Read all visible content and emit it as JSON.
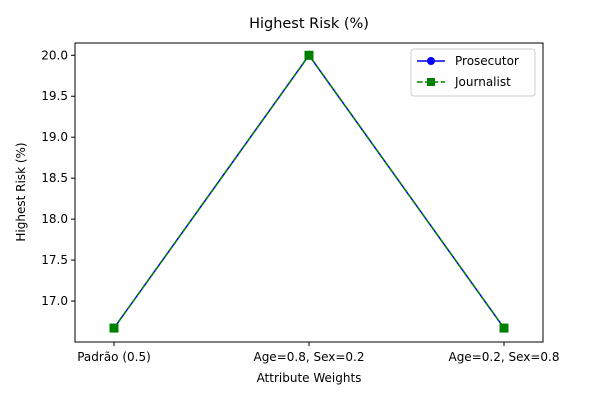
{
  "chart_data": {
    "type": "line",
    "title": "Highest Risk (%)",
    "xlabel": "Attribute Weights",
    "ylabel": "Highest Risk (%)",
    "categories": [
      "Padrão (0.5)",
      "Age=0.8, Sex=0.2",
      "Age=0.2, Sex=0.8"
    ],
    "ylim": [
      16.5,
      20.15
    ],
    "yticks": [
      17.0,
      17.5,
      18.0,
      18.5,
      19.0,
      19.5,
      20.0
    ],
    "ytick_labels": [
      "17.0",
      "17.5",
      "18.0",
      "18.5",
      "19.0",
      "19.5",
      "20.0"
    ],
    "grid": false,
    "legend_position": "top-right",
    "series": [
      {
        "name": "Prosecutor",
        "values": [
          16.67,
          20.0,
          16.67
        ],
        "color": "#0000ff",
        "marker": "circle",
        "linestyle": "solid"
      },
      {
        "name": "Journalist",
        "values": [
          16.67,
          20.0,
          16.67
        ],
        "color": "#008000",
        "marker": "square",
        "linestyle": "dashed"
      }
    ]
  }
}
